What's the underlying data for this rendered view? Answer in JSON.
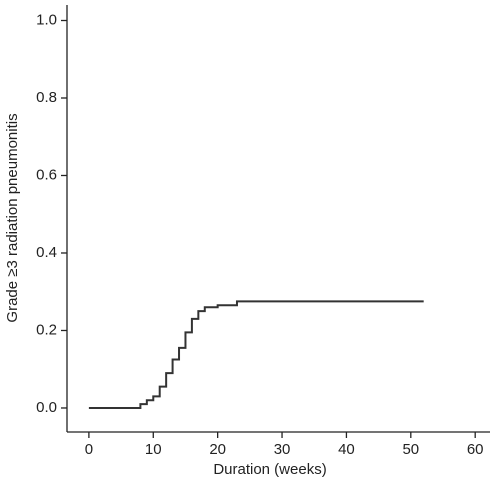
{
  "chart_data": {
    "type": "line",
    "step": "post",
    "x_label": "Duration (weeks)",
    "y_label": "Grade ≥3 radiation pneumonitis",
    "xlim": [
      -3.4,
      62.3
    ],
    "ylim": [
      -0.062,
      1.04
    ],
    "xticks": [
      0,
      10,
      20,
      30,
      40,
      50,
      60
    ],
    "yticks": [
      {
        "value": 0,
        "label": "0.0"
      },
      {
        "value": 0.2,
        "label": "0.2"
      },
      {
        "value": 0.4,
        "label": "0.4"
      },
      {
        "value": 0.6,
        "label": "0.6"
      },
      {
        "value": 0.8,
        "label": "0.8"
      },
      {
        "value": 1,
        "label": "1.0"
      }
    ],
    "series": [
      {
        "color": "#333333",
        "x": [
          0,
          8,
          9,
          10,
          11,
          12,
          13,
          14,
          15,
          16,
          17,
          18,
          20,
          23,
          52
        ],
        "values": [
          0,
          0.01,
          0.02,
          0.03,
          0.055,
          0.09,
          0.125,
          0.155,
          0.195,
          0.23,
          0.25,
          0.26,
          0.265,
          0.275,
          0.275
        ]
      }
    ]
  }
}
